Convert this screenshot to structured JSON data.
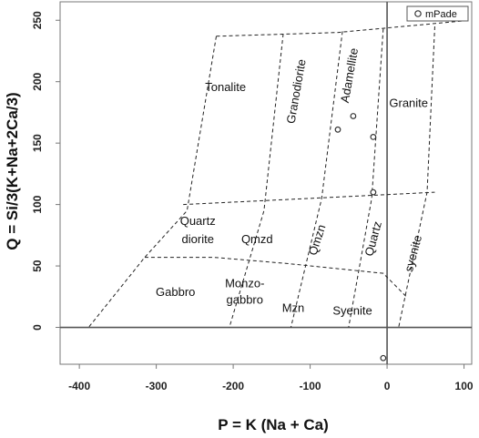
{
  "chart_data": {
    "type": "scatter",
    "title": "",
    "xlabel": "P = K  (Na + Ca)",
    "ylabel": "Q = Si/3(K+Na+2Ca/3)",
    "xlim": [
      -425,
      110
    ],
    "ylim": [
      -30,
      265
    ],
    "x_ticks": [
      -400,
      -300,
      -200,
      -100,
      0,
      100
    ],
    "y_ticks": [
      0,
      50,
      100,
      150,
      200,
      250
    ],
    "grid": false,
    "legend_position": "top-right",
    "legend": [
      {
        "label": "mPade",
        "marker": "open-circle"
      }
    ],
    "series": [
      {
        "name": "mPade",
        "marker": "open-circle",
        "points": [
          {
            "x": -64,
            "y": 161
          },
          {
            "x": -44,
            "y": 172
          },
          {
            "x": -18,
            "y": 155
          },
          {
            "x": -18,
            "y": 110
          },
          {
            "x": -5,
            "y": -25
          }
        ]
      }
    ],
    "reference_lines": [
      {
        "axis": "x",
        "value": 0
      },
      {
        "axis": "y",
        "value": 0
      }
    ],
    "field_boundaries": [
      {
        "name": "upper-boundary",
        "points": [
          [
            -222,
            237
          ],
          [
            -65,
            240
          ],
          [
            108,
            250
          ]
        ]
      },
      {
        "name": "boundary-tonalite-granodiorite",
        "points": [
          [
            -222,
            237
          ],
          [
            -260,
            95
          ],
          [
            -315,
            57
          ],
          [
            -388,
            0
          ]
        ]
      },
      {
        "name": "boundary-granodiorite-adamellite",
        "points": [
          [
            -135,
            239
          ],
          [
            -160,
            95
          ],
          [
            -205,
            0
          ]
        ]
      },
      {
        "name": "boundary-adamellite-granite",
        "points": [
          [
            -58,
            241
          ],
          [
            -85,
            105
          ],
          [
            -125,
            0
          ]
        ]
      },
      {
        "name": "boundary-quartz-syenite",
        "points": [
          [
            -5,
            243
          ],
          [
            -20,
            105
          ],
          [
            -50,
            0
          ]
        ]
      },
      {
        "name": "boundary-right",
        "points": [
          [
            62,
            245
          ],
          [
            52,
            110
          ],
          [
            15,
            0
          ]
        ]
      },
      {
        "name": "quartz-line",
        "points": [
          [
            -265,
            100
          ],
          [
            -100,
            105
          ],
          [
            62,
            110
          ]
        ]
      },
      {
        "name": "lower-line",
        "points": [
          [
            -315,
            57
          ],
          [
            -225,
            57
          ],
          [
            -130,
            52
          ],
          [
            -5,
            44
          ],
          [
            25,
            25
          ]
        ]
      }
    ],
    "region_labels": [
      {
        "text": "Tonalite",
        "x": -210,
        "y": 195,
        "rotation": 0
      },
      {
        "text": "Granodiorite",
        "x": -117,
        "y": 192,
        "rotation": -80
      },
      {
        "text": "Adamellite",
        "x": -48,
        "y": 205,
        "rotation": -80
      },
      {
        "text": "Granite",
        "x": 28,
        "y": 182,
        "rotation": 0
      },
      {
        "text": "Quartz",
        "x": -246,
        "y": 86,
        "rotation": 0
      },
      {
        "text": "diorite",
        "x": -246,
        "y": 71,
        "rotation": 0
      },
      {
        "text": "Qmzd",
        "x": -169,
        "y": 71,
        "rotation": 0
      },
      {
        "text": "Qmzn",
        "x": -90,
        "y": 71,
        "rotation": -72
      },
      {
        "text": "Quartz",
        "x": -17,
        "y": 72,
        "rotation": -75
      },
      {
        "text": "syenite",
        "x": 35,
        "y": 60,
        "rotation": -75
      },
      {
        "text": "Gabbro",
        "x": -275,
        "y": 28,
        "rotation": 0
      },
      {
        "text": "Monzo-",
        "x": -185,
        "y": 35,
        "rotation": 0
      },
      {
        "text": "gabbro",
        "x": -185,
        "y": 22,
        "rotation": 0
      },
      {
        "text": "Mzn",
        "x": -122,
        "y": 15,
        "rotation": 0
      },
      {
        "text": "Syenite",
        "x": -45,
        "y": 13,
        "rotation": 0
      }
    ],
    "colors": {
      "axis": "#555555",
      "frame": "#777777",
      "boundary": "#222222",
      "marker": "#333333",
      "text": "#111111"
    }
  }
}
